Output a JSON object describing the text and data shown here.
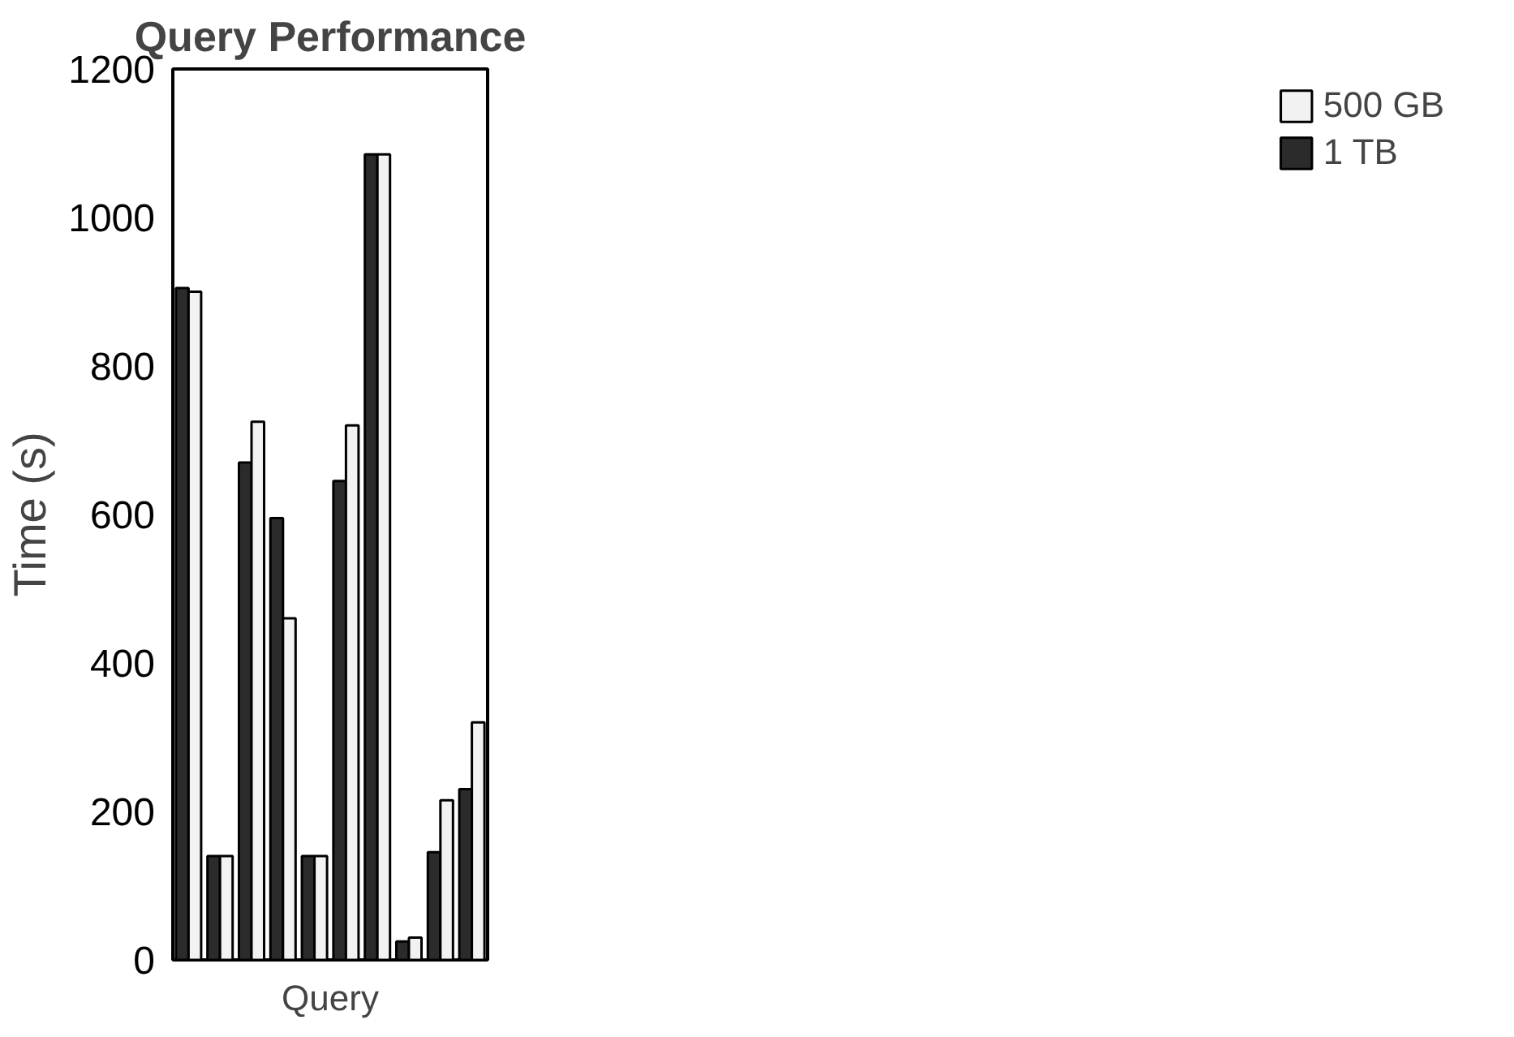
{
  "chart_data": {
    "type": "bar",
    "title": "Query Performance",
    "xlabel": "Query",
    "ylabel": "Time (s)",
    "categories": [
      null,
      null,
      null,
      null,
      null,
      null,
      null,
      null,
      null,
      null
    ],
    "series": [
      {
        "name": "1 TB",
        "color": "#2b2b2b",
        "values": [
          905,
          140,
          670,
          595,
          140,
          645,
          1085,
          25,
          145,
          230
        ]
      },
      {
        "name": "500 GB",
        "color": "#f2f2f2",
        "values": [
          900,
          140,
          725,
          460,
          140,
          720,
          1085,
          30,
          215,
          320
        ]
      }
    ],
    "ylim": [
      0,
      1200
    ],
    "yticks": [
      0,
      200,
      400,
      600,
      800,
      1000,
      1200
    ],
    "grid": false,
    "legend": "right",
    "tick_labels": "y"
  }
}
